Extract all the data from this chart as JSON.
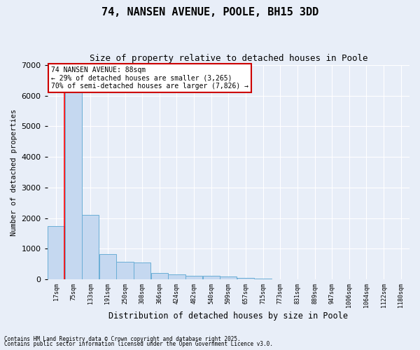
{
  "title1": "74, NANSEN AVENUE, POOLE, BH15 3DD",
  "title2": "Size of property relative to detached houses in Poole",
  "xlabel": "Distribution of detached houses by size in Poole",
  "ylabel": "Number of detached properties",
  "annotation_title": "74 NANSEN AVENUE: 88sqm",
  "annotation_line1": "← 29% of detached houses are smaller (3,265)",
  "annotation_line2": "70% of semi-detached houses are larger (7,826) →",
  "footer1": "Contains HM Land Registry data © Crown copyright and database right 2025.",
  "footer2": "Contains public sector information licensed under the Open Government Licence v3.0.",
  "bin_labels": [
    "17sqm",
    "75sqm",
    "133sqm",
    "191sqm",
    "250sqm",
    "308sqm",
    "366sqm",
    "424sqm",
    "482sqm",
    "540sqm",
    "599sqm",
    "657sqm",
    "715sqm",
    "773sqm",
    "831sqm",
    "889sqm",
    "947sqm",
    "1006sqm",
    "1064sqm",
    "1122sqm",
    "1180sqm"
  ],
  "bar_values": [
    1750,
    6200,
    2100,
    820,
    570,
    560,
    200,
    170,
    120,
    120,
    85,
    55,
    25,
    8,
    4,
    2,
    1,
    1,
    0,
    0,
    0
  ],
  "bar_color": "#c5d8f0",
  "bar_edge_color": "#6aaed6",
  "background_color": "#e8eef8",
  "plot_bg_color": "#e8eef8",
  "ylim": [
    0,
    7000
  ],
  "yticks": [
    0,
    1000,
    2000,
    3000,
    4000,
    5000,
    6000,
    7000
  ],
  "grid_color": "#ffffff",
  "annotation_box_color": "#ffffff",
  "annotation_border_color": "#cc0000",
  "red_line_index": 1
}
